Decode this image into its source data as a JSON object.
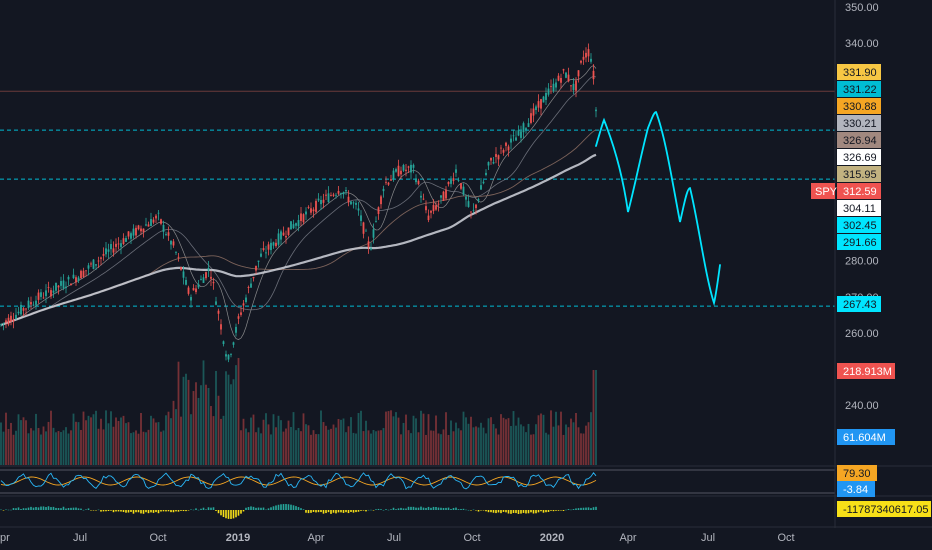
{
  "chart_data": {
    "type": "candlestick",
    "symbol": "SPY",
    "x_labels": [
      "pr",
      "Jul",
      "Oct",
      "2019",
      "Apr",
      "Jul",
      "Oct",
      "2020",
      "Apr",
      "Jul",
      "Oct"
    ],
    "y_ticks": [
      "350.00",
      "340.00",
      "280.00",
      "270.00",
      "260.00",
      "240.00"
    ],
    "price_range": [
      250,
      350
    ],
    "price_badges": [
      {
        "label": "331.90",
        "value": 331.9,
        "color": "#f7c744",
        "text_color": "#131722"
      },
      {
        "label": "331.22",
        "value": 331.22,
        "color": "#00bcd4",
        "text_color": "#131722"
      },
      {
        "label": "330.88",
        "value": 330.88,
        "color": "#f5a623",
        "text_color": "#131722"
      },
      {
        "label": "330.21",
        "value": 330.21,
        "color": "#b2b5be",
        "text_color": "#131722"
      },
      {
        "label": "326.94",
        "value": 326.94,
        "color": "#a1887f",
        "text_color": "#131722"
      },
      {
        "label": "326.69",
        "value": 326.69,
        "color": "#ffffff",
        "text_color": "#131722"
      },
      {
        "label": "315.95",
        "value": 315.95,
        "color": "#c2b280",
        "text_color": "#131722"
      },
      {
        "label": "312.59",
        "value": 312.59,
        "color": "#ef5350",
        "text_color": "#ffffff"
      },
      {
        "label": "304.11",
        "value": 304.11,
        "color": "#ffffff",
        "text_color": "#131722"
      },
      {
        "label": "302.45",
        "value": 302.45,
        "color": "#00e5ff",
        "text_color": "#131722"
      },
      {
        "label": "291.66",
        "value": 291.66,
        "color": "#00e5ff",
        "text_color": "#131722"
      },
      {
        "label": "267.43",
        "value": 267.43,
        "color": "#00e5ff",
        "text_color": "#131722"
      }
    ],
    "symbol_tag": "SPY",
    "horizontal_levels": [
      {
        "value": 326.69,
        "style": "solid",
        "color": "#6b3a3a"
      },
      {
        "value": 315.95,
        "style": "dashed",
        "color": "#00bcd4"
      },
      {
        "value": 302.45,
        "style": "dashed",
        "color": "#00bcd4"
      },
      {
        "value": 267.43,
        "style": "dashed",
        "color": "#00bcd4"
      }
    ],
    "volume_badges": [
      {
        "label": "218.913M",
        "color": "#ef5350",
        "text_color": "#ffffff"
      },
      {
        "label": "61.604M",
        "color": "#2196f3",
        "text_color": "#ffffff"
      }
    ],
    "indicator_badges": [
      {
        "label": "79.30",
        "color": "#f5a623",
        "text_color": "#131722"
      },
      {
        "label": "-3.84",
        "color": "#2196f3",
        "text_color": "#ffffff"
      },
      {
        "label": "-11787340617.05",
        "color": "#f7e018",
        "text_color": "#131722"
      }
    ],
    "grid": false
  }
}
